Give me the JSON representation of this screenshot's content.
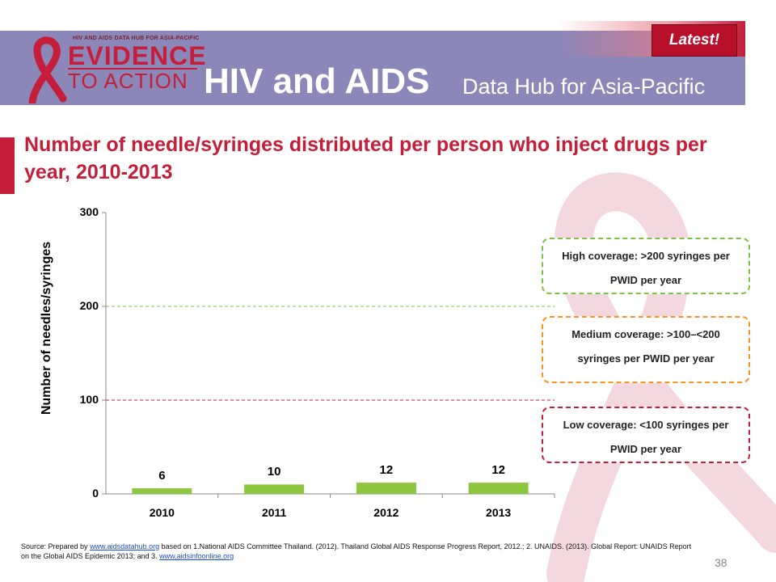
{
  "header": {
    "logo_top": "HIV AND AIDS DATA HUB FOR ASIA-PACIFIC",
    "logo_line1": "EVIDENCE",
    "logo_line2": "TO ACTION",
    "title": "HIV and AIDS",
    "subtitle": "Data Hub for Asia-Pacific",
    "badge": "Latest!"
  },
  "slide": {
    "title": "Number of needle/syringes distributed per person who inject drugs per year, 2010-2013",
    "page_number": "38"
  },
  "coverage": {
    "high": "High coverage: >200 syringes per PWID per year",
    "medium": "Medium coverage: >100–<200 syringes per PWID per year",
    "low": "Low coverage: <100 syringes per PWID per year"
  },
  "source": {
    "t1": "Source: Prepared by ",
    "link1": "www.aidsdatahub.org",
    "t2": " based on 1.National AIDS Committee Thailand. (2012). Thailand Global AIDS Response Progress Report, 2012.; 2. UNAIDS. (2013). Global Report: UNAIDS Report on the Global AIDS Epidemic 2013; and 3. ",
    "link2": "www.aidsinfoonline.org"
  },
  "colors": {
    "bar": "#8dc63f",
    "high_line": "#7cc242",
    "low_line": "#c41e3a",
    "medium_box": "#f7941d",
    "header": "#8b87b9",
    "accent": "#c41e3a"
  },
  "chart_data": {
    "type": "bar",
    "categories": [
      "2010",
      "2011",
      "2012",
      "2013"
    ],
    "values": [
      6,
      10,
      12,
      12
    ],
    "ylabel": "Number of needles/syringes",
    "ylim": [
      0,
      300
    ],
    "yticks": [
      0,
      100,
      200,
      300
    ],
    "reference_lines": [
      200,
      100
    ],
    "legend": "none",
    "grid": false
  }
}
